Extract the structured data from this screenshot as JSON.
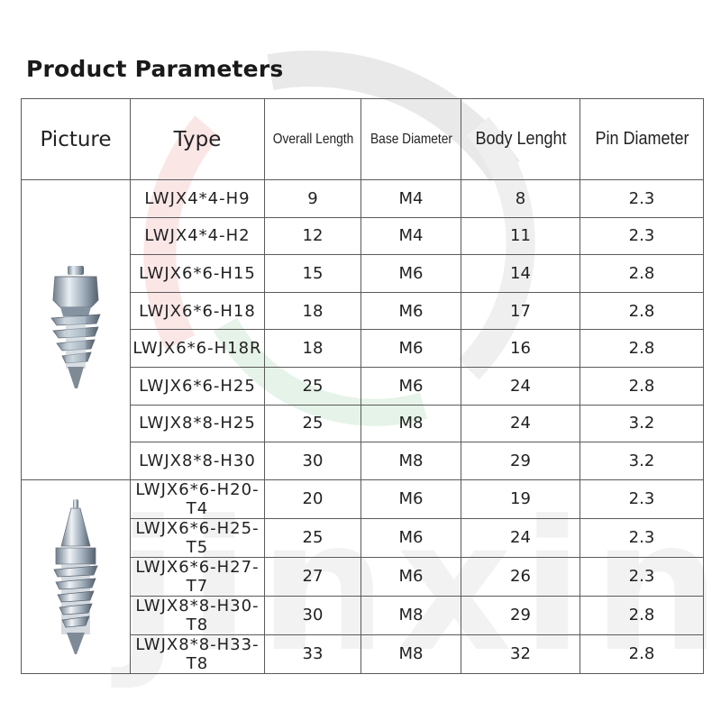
{
  "page": {
    "title": "Product Parameters"
  },
  "watermark": {
    "text": "jinxin"
  },
  "table": {
    "headers": {
      "picture": "Picture",
      "type": "Type",
      "overall_length": "Overall Length",
      "base_diameter": "Base Diameter",
      "body_length": "Body Lenght",
      "pin_diameter": "Pin Diameter"
    },
    "groups": [
      {
        "picture_icon": "screw-stud-flat-head-icon",
        "rows": [
          {
            "type": "LWJX4*4-H9",
            "overall_length": "9",
            "base_diameter": "M4",
            "body_length": "8",
            "pin_diameter": "2.3"
          },
          {
            "type": "LWJX4*4-H2",
            "overall_length": "12",
            "base_diameter": "M4",
            "body_length": "11",
            "pin_diameter": "2.3"
          },
          {
            "type": "LWJX6*6-H15",
            "overall_length": "15",
            "base_diameter": "M6",
            "body_length": "14",
            "pin_diameter": "2.8"
          },
          {
            "type": "LWJX6*6-H18",
            "overall_length": "18",
            "base_diameter": "M6",
            "body_length": "17",
            "pin_diameter": "2.8"
          },
          {
            "type": "LWJX6*6-H18R",
            "overall_length": "18",
            "base_diameter": "M6",
            "body_length": "16",
            "pin_diameter": "2.8"
          },
          {
            "type": "LWJX6*6-H25",
            "overall_length": "25",
            "base_diameter": "M6",
            "body_length": "24",
            "pin_diameter": "2.8"
          },
          {
            "type": "LWJX8*8-H25",
            "overall_length": "25",
            "base_diameter": "M8",
            "body_length": "24",
            "pin_diameter": "3.2"
          },
          {
            "type": "LWJX8*8-H30",
            "overall_length": "30",
            "base_diameter": "M8",
            "body_length": "29",
            "pin_diameter": "3.2"
          }
        ]
      },
      {
        "picture_icon": "screw-stud-pointed-head-icon",
        "rows": [
          {
            "type": "LWJX6*6-H20-T4",
            "overall_length": "20",
            "base_diameter": "M6",
            "body_length": "19",
            "pin_diameter": "2.3"
          },
          {
            "type": "LWJX6*6-H25-T5",
            "overall_length": "25",
            "base_diameter": "M6",
            "body_length": "24",
            "pin_diameter": "2.3"
          },
          {
            "type": "LWJX6*6-H27-T7",
            "overall_length": "27",
            "base_diameter": "M6",
            "body_length": "26",
            "pin_diameter": "2.3"
          },
          {
            "type": "LWJX8*8-H30-T8",
            "overall_length": "30",
            "base_diameter": "M8",
            "body_length": "29",
            "pin_diameter": "2.8"
          },
          {
            "type": "LWJX8*8-H33-T8",
            "overall_length": "33",
            "base_diameter": "M8",
            "body_length": "32",
            "pin_diameter": "2.8"
          }
        ]
      }
    ]
  }
}
